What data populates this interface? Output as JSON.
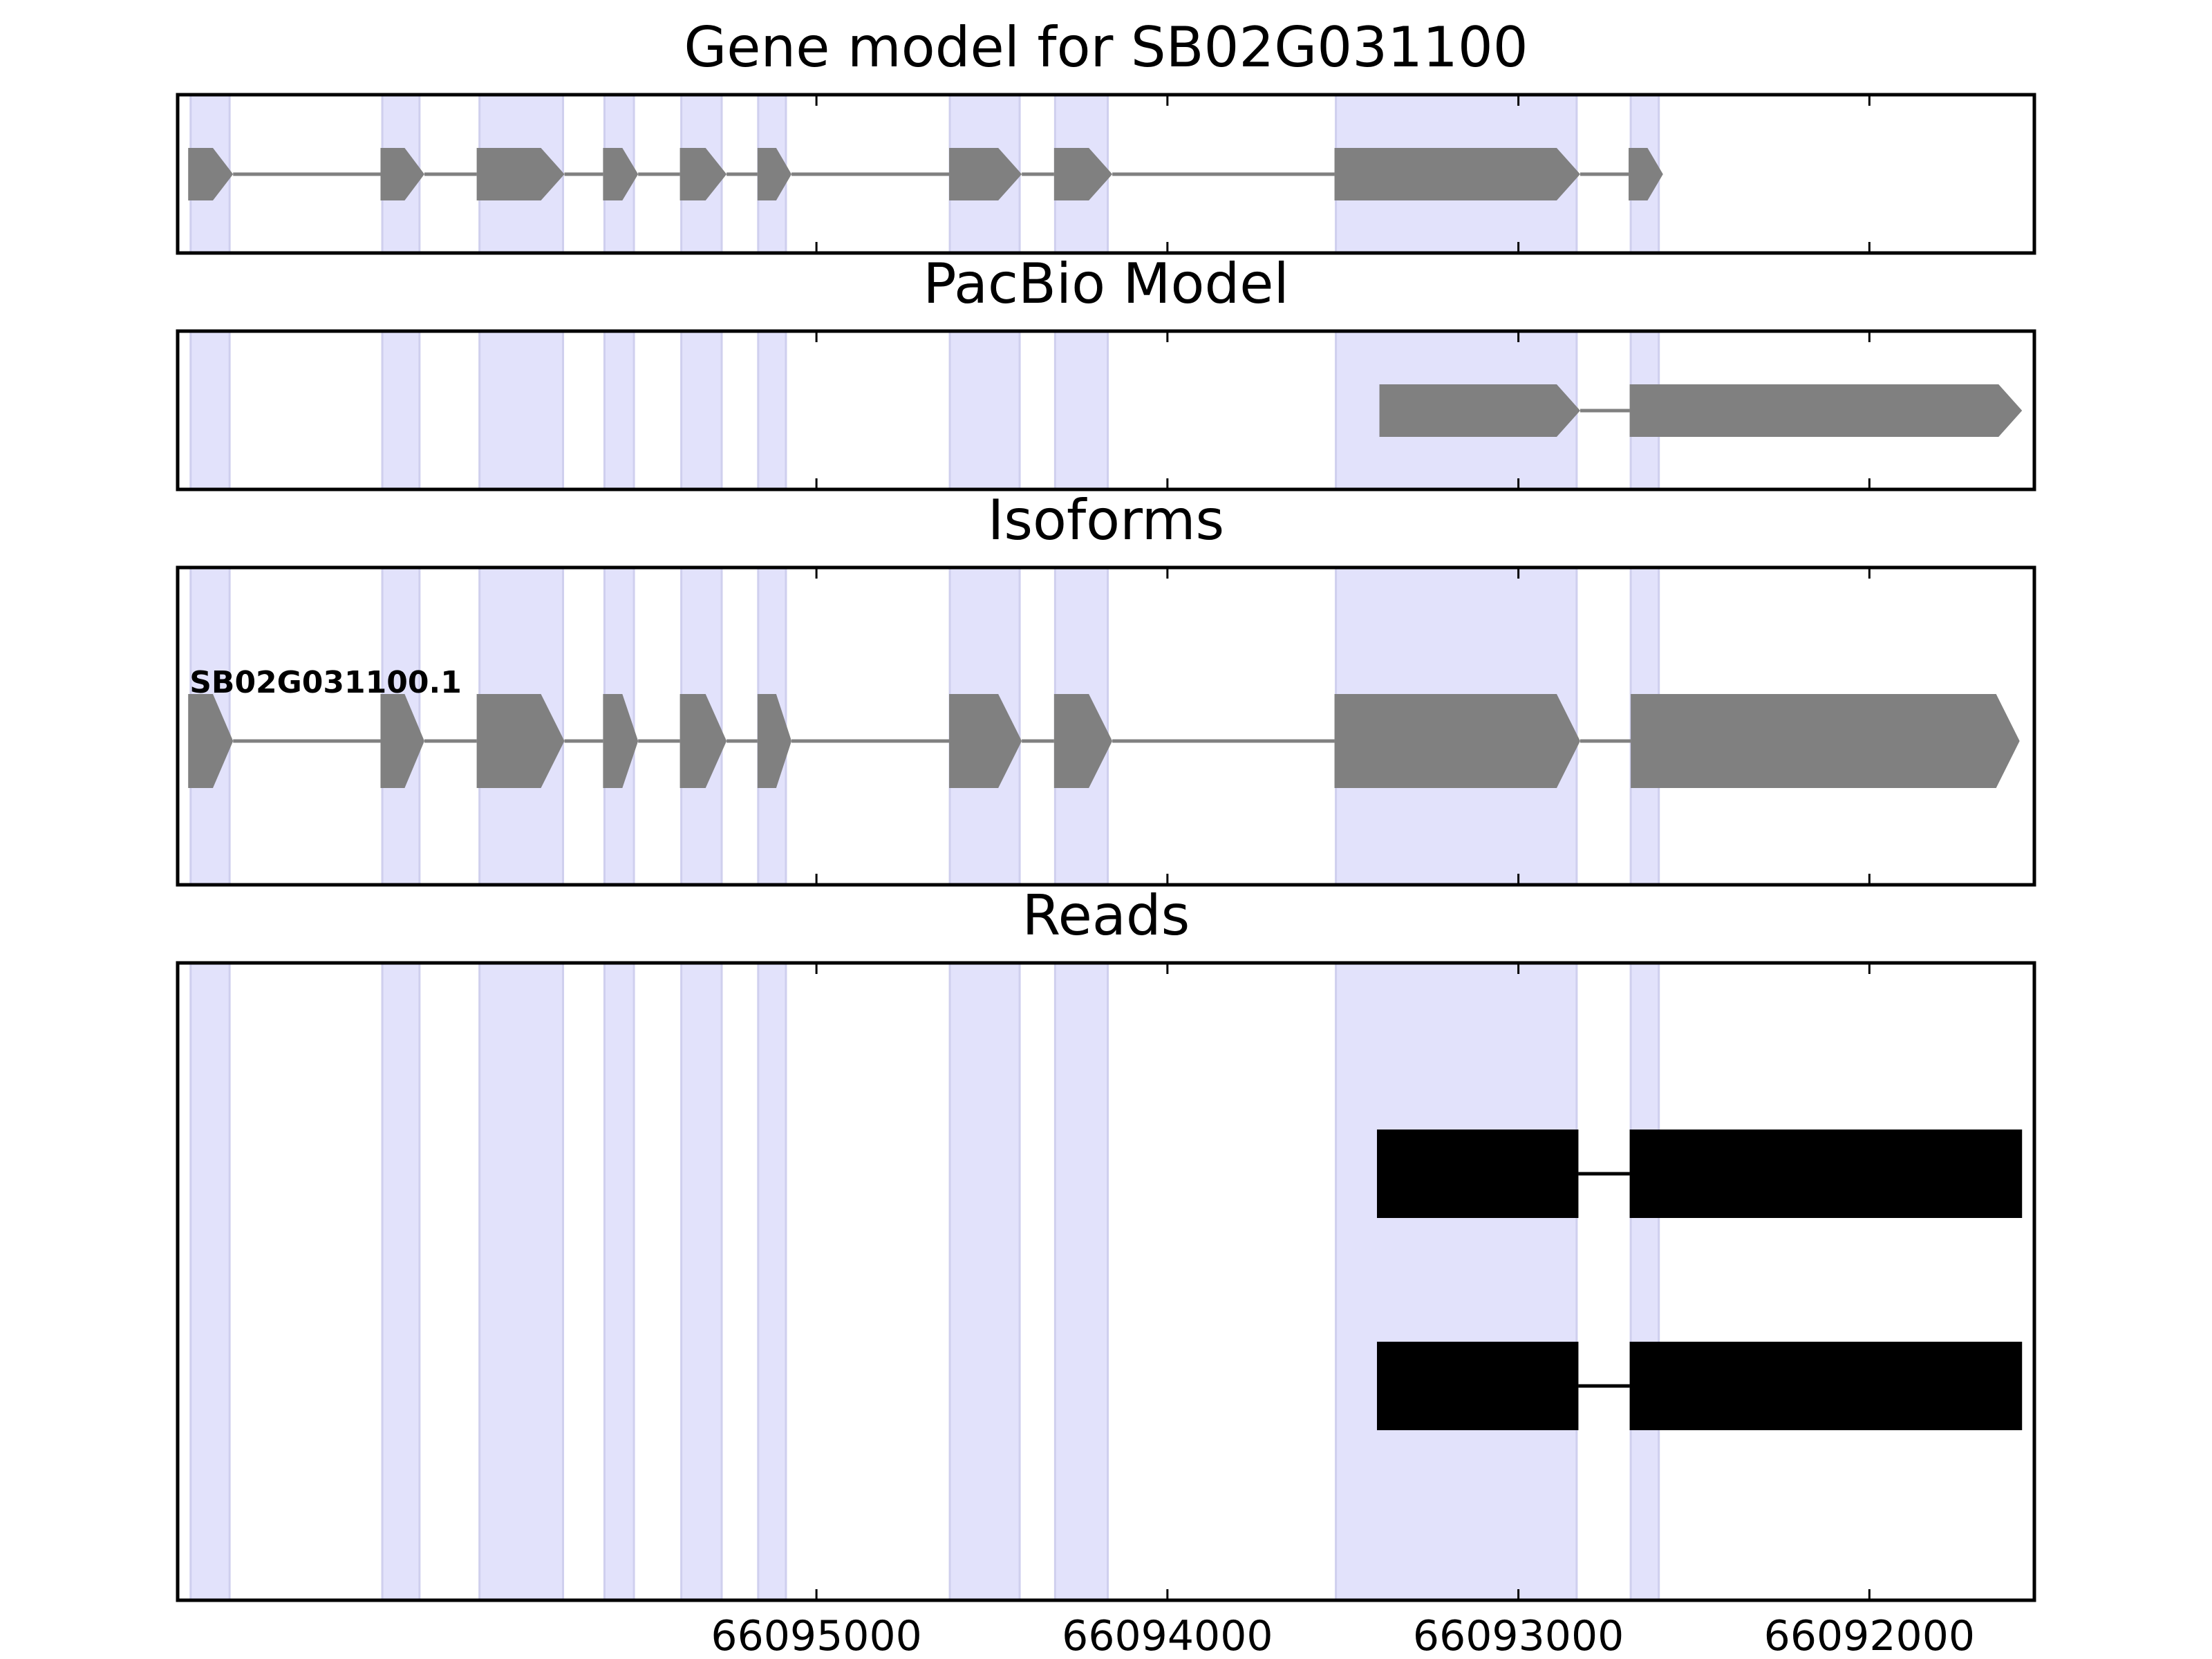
{
  "colors": {
    "exon_band": "#e2e2fb",
    "exon_band_edge": "#cfcfee",
    "gene_feature": "#808080",
    "read_feature": "#000000",
    "frame": "#000000",
    "background": "#ffffff"
  },
  "chart_data": [
    {
      "type": "gene-track",
      "title": "Gene model for SB02G031100",
      "xlim": [
        66096820,
        66091530
      ],
      "xaxis_reversed": true,
      "xticks": [
        66095000,
        66094000,
        66093000,
        66092000
      ],
      "tick_labels_shown": false,
      "exon_bands": [
        [
          66096783,
          66096672
        ],
        [
          66096237,
          66096131
        ],
        [
          66095960,
          66095722
        ],
        [
          66095604,
          66095520
        ],
        [
          66095385,
          66095270
        ],
        [
          66095166,
          66095087
        ],
        [
          66094620,
          66094421
        ],
        [
          66094320,
          66094170
        ],
        [
          66093520,
          66092834
        ],
        [
          66092680,
          66092600
        ]
      ],
      "features": [
        {
          "name": "",
          "color": "gene_feature",
          "exons": [
            [
              66096790,
              66096662
            ],
            [
              66096242,
              66096117
            ],
            [
              66095968,
              66095718
            ],
            [
              66095608,
              66095508
            ],
            [
              66095389,
              66095256
            ],
            [
              66095168,
              66095071
            ],
            [
              66094622,
              66094415
            ],
            [
              66094323,
              66094157
            ],
            [
              66093524,
              66092824
            ],
            [
              66092686,
              66092588
            ]
          ]
        }
      ]
    },
    {
      "type": "gene-track",
      "title": "PacBio Model",
      "xlim": [
        66096820,
        66091530
      ],
      "xaxis_reversed": true,
      "xticks": [
        66095000,
        66094000,
        66093000,
        66092000
      ],
      "tick_labels_shown": false,
      "exon_bands": [
        [
          66096783,
          66096672
        ],
        [
          66096237,
          66096131
        ],
        [
          66095960,
          66095722
        ],
        [
          66095604,
          66095520
        ],
        [
          66095385,
          66095270
        ],
        [
          66095166,
          66095087
        ],
        [
          66094620,
          66094421
        ],
        [
          66094320,
          66094170
        ],
        [
          66093520,
          66092834
        ],
        [
          66092680,
          66092600
        ]
      ],
      "features": [
        {
          "name": "",
          "color": "gene_feature",
          "exons": [
            [
              66093396,
              66092824
            ],
            [
              66092683,
              66091565
            ]
          ]
        }
      ]
    },
    {
      "type": "gene-track",
      "title": "Isoforms",
      "xlim": [
        66096820,
        66091530
      ],
      "xaxis_reversed": true,
      "xticks": [
        66095000,
        66094000,
        66093000,
        66092000
      ],
      "tick_labels_shown": false,
      "exon_bands": [
        [
          66096783,
          66096672
        ],
        [
          66096237,
          66096131
        ],
        [
          66095960,
          66095722
        ],
        [
          66095604,
          66095520
        ],
        [
          66095385,
          66095270
        ],
        [
          66095166,
          66095087
        ],
        [
          66094620,
          66094421
        ],
        [
          66094320,
          66094170
        ],
        [
          66093520,
          66092834
        ],
        [
          66092680,
          66092600
        ]
      ],
      "features": [
        {
          "name": "SB02G031100.1",
          "color": "gene_feature",
          "exons": [
            [
              66096790,
              66096662
            ],
            [
              66096242,
              66096117
            ],
            [
              66095968,
              66095718
            ],
            [
              66095608,
              66095508
            ],
            [
              66095389,
              66095256
            ],
            [
              66095168,
              66095071
            ],
            [
              66094622,
              66094415
            ],
            [
              66094323,
              66094157
            ],
            [
              66093524,
              66092824
            ],
            [
              66092680,
              66091572
            ]
          ]
        }
      ]
    },
    {
      "type": "gene-track",
      "title": "Reads",
      "xlim": [
        66096820,
        66091530
      ],
      "xaxis_reversed": true,
      "xticks": [
        66095000,
        66094000,
        66093000,
        66092000
      ],
      "tick_labels": [
        "66095000",
        "66094000",
        "66093000",
        "66092000"
      ],
      "tick_labels_shown": true,
      "exon_bands": [
        [
          66096783,
          66096672
        ],
        [
          66096237,
          66096131
        ],
        [
          66095960,
          66095722
        ],
        [
          66095604,
          66095520
        ],
        [
          66095385,
          66095270
        ],
        [
          66095166,
          66095087
        ],
        [
          66094620,
          66094421
        ],
        [
          66094320,
          66094170
        ],
        [
          66093520,
          66092834
        ],
        [
          66092680,
          66092600
        ]
      ],
      "features": [
        {
          "name": "",
          "color": "read_feature",
          "exons": [
            [
              66093403,
              66092829
            ],
            [
              66092683,
              66091565
            ]
          ]
        },
        {
          "name": "",
          "color": "read_feature",
          "exons": [
            [
              66093403,
              66092829
            ],
            [
              66092683,
              66091565
            ]
          ]
        }
      ]
    }
  ]
}
